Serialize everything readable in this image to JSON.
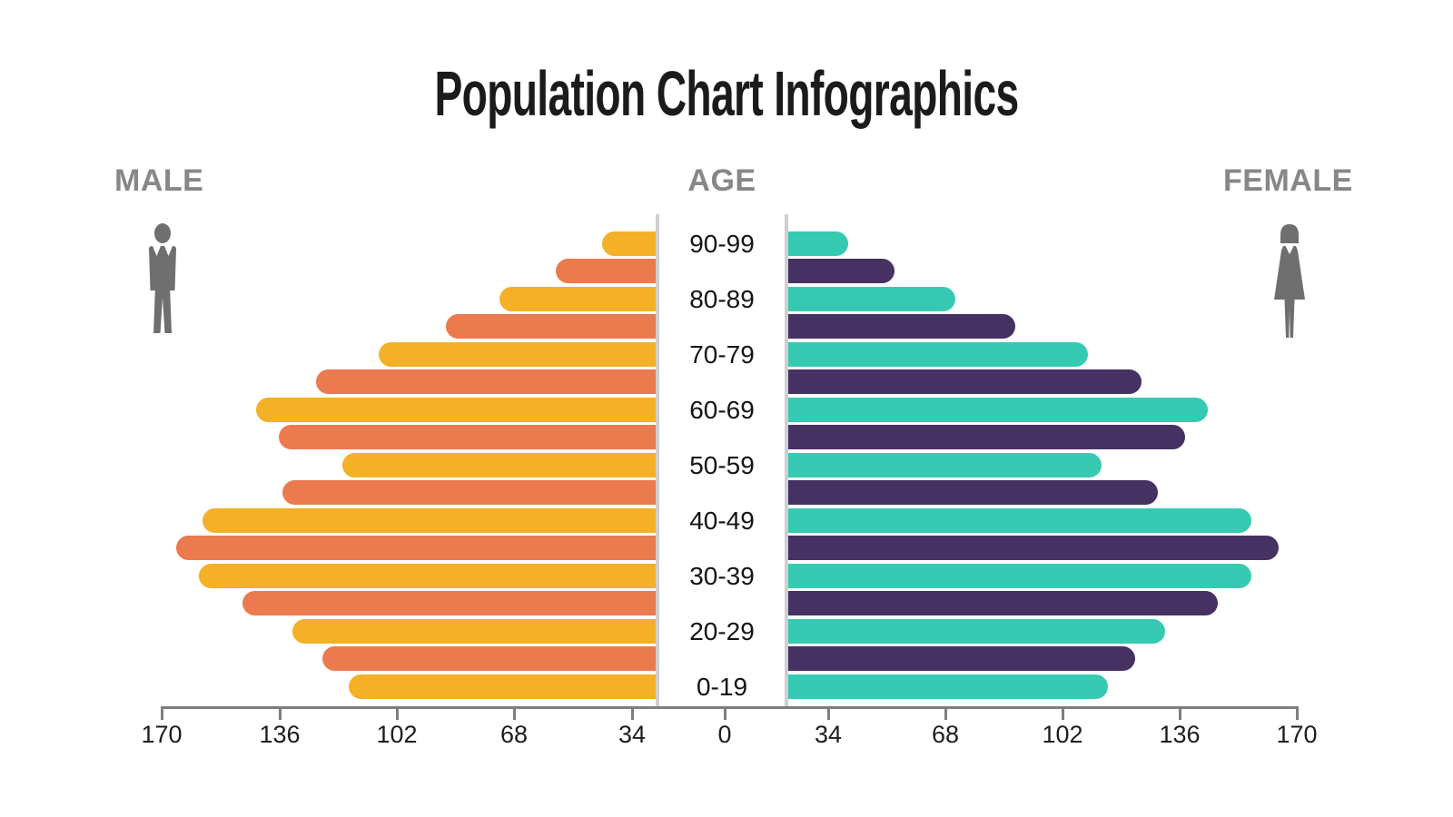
{
  "title": "Population Chart Infographics",
  "header": {
    "male_label": "MALE",
    "age_label": "AGE",
    "female_label": "FEMALE"
  },
  "colors": {
    "male_bar_yellow": "#F4B027",
    "male_bar_orange": "#EB7A4E",
    "female_bar_teal": "#37CAB2",
    "female_bar_purple": "#463163",
    "section_label_gray": "#878787",
    "icon_gray": "#6F6F6F",
    "axis_gray": "#7E7E7E",
    "divider_gray": "#CFCFCF",
    "text_dark": "#1B1B1B"
  },
  "icons": {
    "male": "male-person-icon",
    "female": "female-person-icon"
  },
  "axis": {
    "tick_labels": [
      "170",
      "136",
      "102",
      "68",
      "34",
      "0",
      "34",
      "68",
      "102",
      "136",
      "170"
    ],
    "min": 0,
    "max": 170,
    "step": 34,
    "zero_at_center": true
  },
  "chart_data": {
    "type": "bar",
    "subtype": "population-pyramid",
    "title": "Population Chart Infographics",
    "left_series": "MALE",
    "right_series": "FEMALE",
    "ylabel": "AGE",
    "xlim_each_side": [
      0,
      170
    ],
    "grid": false,
    "age_groups": [
      "90-99",
      "80-89",
      "70-79",
      "60-69",
      "50-59",
      "40-49",
      "30-39",
      "20-29",
      "0-19"
    ],
    "rows": [
      {
        "age": "90-99",
        "male": 36,
        "female": 38
      },
      {
        "age": "",
        "male": 50,
        "female": 52
      },
      {
        "age": "80-89",
        "male": 67,
        "female": 70
      },
      {
        "age": "",
        "male": 83,
        "female": 88
      },
      {
        "age": "70-79",
        "male": 103,
        "female": 110
      },
      {
        "age": "",
        "male": 122,
        "female": 126
      },
      {
        "age": "60-69",
        "male": 140,
        "female": 146
      },
      {
        "age": "",
        "male": 133,
        "female": 139
      },
      {
        "age": "50-59",
        "male": 114,
        "female": 114
      },
      {
        "age": "",
        "male": 132,
        "female": 131
      },
      {
        "age": "40-49",
        "male": 156,
        "female": 159
      },
      {
        "age": "",
        "male": 164,
        "female": 167
      },
      {
        "age": "30-39",
        "male": 157,
        "female": 159
      },
      {
        "age": "",
        "male": 144,
        "female": 149
      },
      {
        "age": "20-29",
        "male": 129,
        "female": 133
      },
      {
        "age": "",
        "male": 120,
        "female": 124
      },
      {
        "age": "0-19",
        "male": 112,
        "female": 116
      }
    ]
  }
}
